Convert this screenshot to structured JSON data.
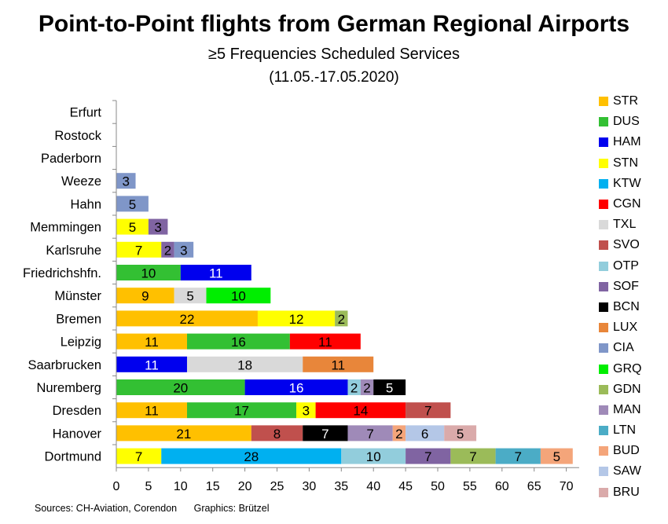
{
  "header": {
    "title": "Point-to-Point flights from German Regional Airports",
    "subtitle": "≥5 Frequencies Scheduled Services",
    "date_range": "(11.05.-17.05.2020)"
  },
  "footer": {
    "sources": "Sources: CH-Aviation, Corendon",
    "graphics": "Graphics: Brützel"
  },
  "chart_data": {
    "type": "bar",
    "orientation": "horizontal",
    "stacked": true,
    "xlim": [
      0,
      72
    ],
    "xticks": [
      0,
      5,
      10,
      15,
      20,
      25,
      30,
      35,
      40,
      45,
      50,
      55,
      60,
      65,
      70
    ],
    "grid": false,
    "legend_position": "right",
    "categories": [
      "Erfurt",
      "Rostock",
      "Paderborn",
      "Weeze",
      "Hahn",
      "Memmingen",
      "Karlsruhe",
      "Friedrichshfn.",
      "Münster",
      "Bremen",
      "Leipzig",
      "Saarbrucken",
      "Nuremberg",
      "Dresden",
      "Hanover",
      "Dortmund"
    ],
    "series": [
      {
        "name": "STR",
        "color": "#FFC000"
      },
      {
        "name": "DUS",
        "color": "#33C033"
      },
      {
        "name": "HAM",
        "color": "#0000EE"
      },
      {
        "name": "STN",
        "color": "#FFFF00"
      },
      {
        "name": "KTW",
        "color": "#00B0F0"
      },
      {
        "name": "CGN",
        "color": "#FF0000"
      },
      {
        "name": "TXL",
        "color": "#D9D9D9"
      },
      {
        "name": "SVO",
        "color": "#C0504D"
      },
      {
        "name": "OTP",
        "color": "#92CDDC"
      },
      {
        "name": "SOF",
        "color": "#8064A2"
      },
      {
        "name": "BCN",
        "color": "#000000"
      },
      {
        "name": "LUX",
        "color": "#E8863A"
      },
      {
        "name": "CIA",
        "color": "#7F96C8"
      },
      {
        "name": "GRQ",
        "color": "#00EE00"
      },
      {
        "name": "GDN",
        "color": "#9BBB59"
      },
      {
        "name": "MAN",
        "color": "#9F8AB8"
      },
      {
        "name": "LTN",
        "color": "#4BACC6"
      },
      {
        "name": "BUD",
        "color": "#F4A57A"
      },
      {
        "name": "SAW",
        "color": "#B4C7E7"
      },
      {
        "name": "BRU",
        "color": "#DAAAAA"
      }
    ],
    "bars": [
      {
        "category": "Erfurt",
        "segments": []
      },
      {
        "category": "Rostock",
        "segments": []
      },
      {
        "category": "Paderborn",
        "segments": []
      },
      {
        "category": "Weeze",
        "segments": [
          {
            "series": "CIA",
            "value": 3
          }
        ]
      },
      {
        "category": "Hahn",
        "segments": [
          {
            "series": "CIA",
            "value": 5
          }
        ]
      },
      {
        "category": "Memmingen",
        "segments": [
          {
            "series": "STN",
            "value": 5
          },
          {
            "series": "SOF",
            "value": 3
          }
        ]
      },
      {
        "category": "Karlsruhe",
        "segments": [
          {
            "series": "STN",
            "value": 7
          },
          {
            "series": "SOF",
            "value": 2
          },
          {
            "series": "CIA",
            "value": 3
          }
        ]
      },
      {
        "category": "Friedrichshfn.",
        "segments": [
          {
            "series": "DUS",
            "value": 10
          },
          {
            "series": "HAM",
            "value": 11
          }
        ]
      },
      {
        "category": "Münster",
        "segments": [
          {
            "series": "STR",
            "value": 9
          },
          {
            "series": "TXL",
            "value": 5
          },
          {
            "series": "GRQ",
            "value": 10
          }
        ]
      },
      {
        "category": "Bremen",
        "segments": [
          {
            "series": "STR",
            "value": 22
          },
          {
            "series": "STN",
            "value": 12
          },
          {
            "series": "GDN",
            "value": 2
          }
        ]
      },
      {
        "category": "Leipzig",
        "segments": [
          {
            "series": "STR",
            "value": 11
          },
          {
            "series": "DUS",
            "value": 16
          },
          {
            "series": "CGN",
            "value": 11
          }
        ]
      },
      {
        "category": "Saarbrucken",
        "segments": [
          {
            "series": "HAM",
            "value": 11
          },
          {
            "series": "TXL",
            "value": 18
          },
          {
            "series": "LUX",
            "value": 11
          }
        ]
      },
      {
        "category": "Nuremberg",
        "segments": [
          {
            "series": "DUS",
            "value": 20
          },
          {
            "series": "HAM",
            "value": 16
          },
          {
            "series": "OTP",
            "value": 2
          },
          {
            "series": "MAN",
            "value": 2
          },
          {
            "series": "BCN",
            "value": 5
          }
        ]
      },
      {
        "category": "Dresden",
        "segments": [
          {
            "series": "STR",
            "value": 11
          },
          {
            "series": "DUS",
            "value": 17
          },
          {
            "series": "STN",
            "value": 3
          },
          {
            "series": "CGN",
            "value": 14
          },
          {
            "series": "SVO",
            "value": 7
          }
        ]
      },
      {
        "category": "Hanover",
        "segments": [
          {
            "series": "STR",
            "value": 21
          },
          {
            "series": "SVO",
            "value": 8
          },
          {
            "series": "BCN",
            "value": 7
          },
          {
            "series": "MAN",
            "value": 7
          },
          {
            "series": "BUD",
            "value": 2
          },
          {
            "series": "SAW",
            "value": 6
          },
          {
            "series": "BRU",
            "value": 5
          }
        ]
      },
      {
        "category": "Dortmund",
        "segments": [
          {
            "series": "STN",
            "value": 7
          },
          {
            "series": "KTW",
            "value": 28
          },
          {
            "series": "OTP",
            "value": 10
          },
          {
            "series": "SOF",
            "value": 7
          },
          {
            "series": "GDN",
            "value": 7
          },
          {
            "series": "LTN",
            "value": 7
          },
          {
            "series": "BUD",
            "value": 5
          }
        ]
      }
    ]
  }
}
